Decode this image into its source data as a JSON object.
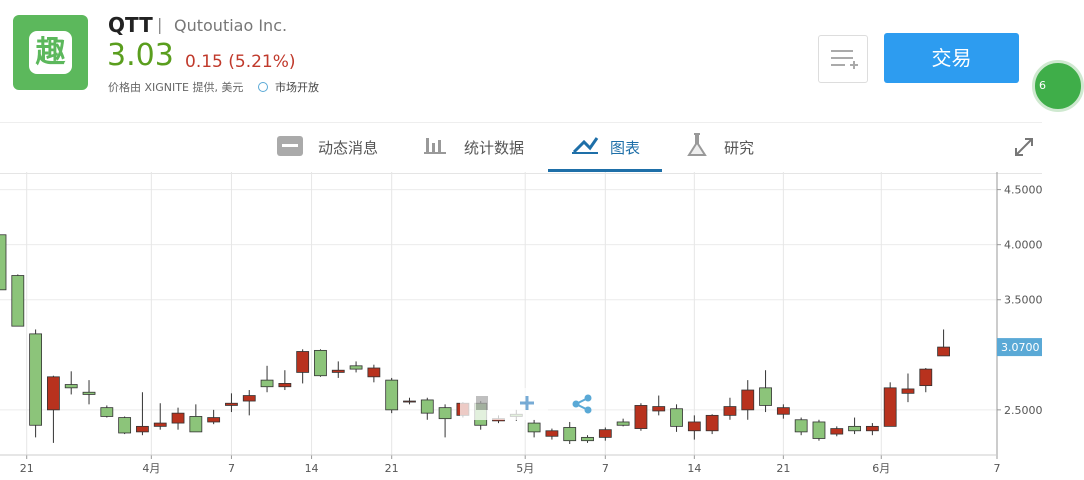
{
  "header": {
    "logo": "趣",
    "ticker": "QTT",
    "separator": "|",
    "company": "Qutoutiao Inc.",
    "price": "3.03",
    "change": "0.15 (5.21%)",
    "source": "价格由 XIGNITE 提供, 美元",
    "status": "市场开放",
    "trade_button": "交易",
    "badge": "6"
  },
  "tabs": [
    "动态消息",
    "统计数据",
    "图表",
    "研究"
  ],
  "chart_data": {
    "type": "candlestick",
    "categories": [
      null,
      null,
      null,
      null,
      null,
      null,
      null,
      null,
      null,
      null,
      null,
      null,
      null,
      null,
      null,
      null,
      null,
      null,
      null,
      null,
      null,
      null,
      null,
      null,
      null,
      null,
      null,
      null,
      null,
      null,
      null,
      null,
      null,
      null,
      null,
      null,
      null,
      null,
      null,
      null,
      null,
      null,
      null,
      null,
      null,
      null,
      null,
      null,
      null,
      null,
      null,
      null,
      null,
      null
    ],
    "open": [
      4.09,
      3.72,
      3.19,
      2.5,
      2.73,
      2.66,
      2.52,
      2.43,
      2.3,
      2.35,
      2.38,
      2.44,
      2.39,
      2.54,
      2.58,
      2.77,
      2.71,
      2.84,
      3.04,
      2.84,
      2.9,
      2.8,
      2.77,
      2.58,
      2.59,
      2.52,
      2.45,
      2.56,
      2.4,
      2.46,
      2.38,
      2.26,
      2.34,
      2.25,
      2.25,
      2.39,
      2.33,
      2.49,
      2.51,
      2.31,
      2.31,
      2.45,
      2.5,
      2.7,
      2.46,
      2.41,
      2.39,
      2.28,
      2.35,
      2.31,
      2.35,
      2.65,
      2.72,
      2.99
    ],
    "high": [
      4.09,
      3.73,
      3.23,
      2.81,
      2.85,
      2.77,
      2.54,
      2.44,
      2.66,
      2.56,
      2.52,
      2.55,
      2.5,
      2.65,
      2.68,
      2.9,
      2.86,
      3.05,
      3.05,
      2.94,
      2.94,
      2.91,
      2.79,
      2.61,
      2.61,
      2.55,
      2.57,
      2.58,
      2.45,
      2.5,
      2.41,
      2.33,
      2.39,
      2.27,
      2.34,
      2.42,
      2.56,
      2.63,
      2.55,
      2.45,
      2.46,
      2.61,
      2.77,
      2.86,
      2.55,
      2.43,
      2.41,
      2.35,
      2.43,
      2.38,
      2.75,
      2.83,
      2.88,
      3.23
    ],
    "low": [
      3.59,
      3.26,
      2.25,
      2.2,
      2.64,
      2.55,
      2.43,
      2.28,
      2.27,
      2.32,
      2.32,
      2.3,
      2.37,
      2.48,
      2.45,
      2.66,
      2.68,
      2.74,
      2.8,
      2.79,
      2.84,
      2.75,
      2.47,
      2.55,
      2.41,
      2.25,
      2.43,
      2.32,
      2.38,
      2.4,
      2.25,
      2.23,
      2.19,
      2.2,
      2.22,
      2.35,
      2.31,
      2.45,
      2.3,
      2.23,
      2.28,
      2.41,
      2.41,
      2.48,
      2.42,
      2.27,
      2.22,
      2.26,
      2.28,
      2.27,
      2.35,
      2.57,
      2.66,
      2.99
    ],
    "close": [
      3.59,
      3.26,
      2.36,
      2.8,
      2.7,
      2.64,
      2.44,
      2.29,
      2.35,
      2.38,
      2.47,
      2.3,
      2.43,
      2.56,
      2.63,
      2.71,
      2.74,
      3.03,
      2.81,
      2.86,
      2.87,
      2.88,
      2.5,
      2.58,
      2.47,
      2.42,
      2.56,
      2.36,
      2.42,
      2.44,
      2.3,
      2.31,
      2.22,
      2.22,
      2.32,
      2.36,
      2.54,
      2.53,
      2.35,
      2.39,
      2.45,
      2.53,
      2.68,
      2.54,
      2.52,
      2.3,
      2.24,
      2.33,
      2.31,
      2.35,
      2.7,
      2.69,
      2.87,
      3.07
    ],
    "colors": {
      "up": "#b8321e",
      "down": "#8cc47a"
    },
    "xlim": [
      0,
      56
    ],
    "xticks": [
      {
        "value": 1.5,
        "label": "21"
      },
      {
        "value": 8.5,
        "label": "4月"
      },
      {
        "value": 13,
        "label": "7"
      },
      {
        "value": 17.5,
        "label": "14"
      },
      {
        "value": 22,
        "label": "21"
      },
      {
        "value": 29.5,
        "label": "5月"
      },
      {
        "value": 34,
        "label": "7"
      },
      {
        "value": 39,
        "label": "14"
      },
      {
        "value": 44,
        "label": "21"
      },
      {
        "value": 49.5,
        "label": "6月"
      },
      {
        "value": 56,
        "label": "7"
      }
    ],
    "ylim": [
      2.09,
      4.66
    ],
    "yticks": [
      {
        "value": 2.5,
        "label": "2.5000"
      },
      {
        "value": 3.5,
        "label": "3.5000"
      },
      {
        "value": 4,
        "label": "4.0000"
      },
      {
        "value": 4.5,
        "label": "4.5000"
      }
    ],
    "last_price": {
      "value": 3.07,
      "label": "3.0700"
    },
    "grid": true
  }
}
